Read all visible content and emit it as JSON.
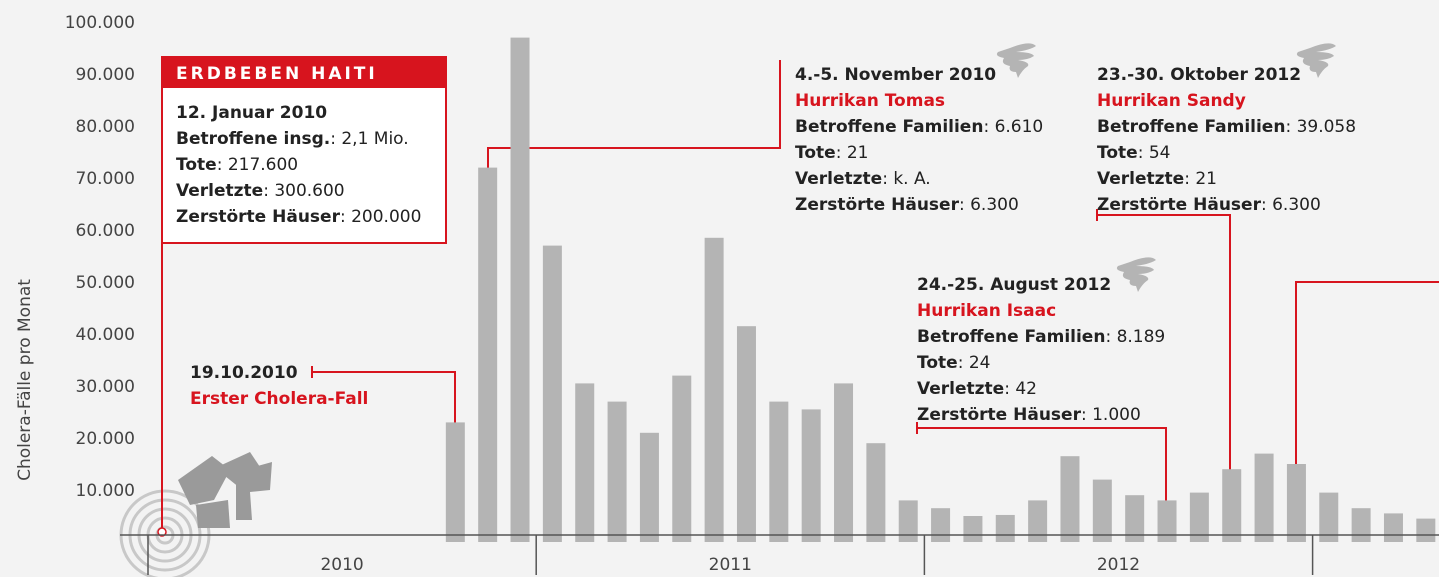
{
  "chart_data": {
    "type": "bar",
    "y_label": "Cholera-Fälle pro Monat",
    "categories": [
      null,
      null,
      null,
      null,
      null,
      null,
      null,
      null,
      null,
      null,
      null,
      null,
      null,
      null,
      null,
      null,
      null,
      null,
      null,
      null,
      null,
      null,
      null,
      null,
      null,
      null,
      null,
      null,
      null,
      null,
      null,
      null,
      null,
      null,
      null,
      null,
      null,
      null,
      null,
      null
    ],
    "values": [
      null,
      null,
      null,
      null,
      null,
      null,
      null,
      null,
      null,
      23000,
      72000,
      97000,
      57000,
      30500,
      27000,
      21000,
      32000,
      58500,
      41500,
      27000,
      25500,
      30500,
      19000,
      8000,
      6500,
      5000,
      5200,
      8000,
      16500,
      12000,
      9000,
      8000,
      9500,
      14000,
      17000,
      15000,
      9500,
      6500,
      5500,
      4500
    ],
    "color": "#b4b4b4",
    "years": [
      "2010",
      "2011",
      "2012"
    ],
    "ylim": [
      0,
      100000
    ],
    "yticks": [
      {
        "value": 10000,
        "label": "10.000"
      },
      {
        "value": 20000,
        "label": "20.000"
      },
      {
        "value": 30000,
        "label": "30.000"
      },
      {
        "value": 40000,
        "label": "40.000"
      },
      {
        "value": 50000,
        "label": "50.000"
      },
      {
        "value": 60000,
        "label": "60.000"
      },
      {
        "value": 70000,
        "label": "70.000"
      },
      {
        "value": 80000,
        "label": "80.000"
      },
      {
        "value": 90000,
        "label": "90.000"
      },
      {
        "value": 100000,
        "label": "100.000"
      }
    ],
    "annotations": [
      {
        "title": "ERDBEBEN HAITI",
        "lines": [
          {
            "bold": "12. Januar 2010"
          },
          {
            "bold": "Betroffene insg.",
            "text": ": 2,1 Mio."
          },
          {
            "bold": "Tote",
            "text": ": 217.600"
          },
          {
            "bold": "Verletzte",
            "text": ": 300.600"
          },
          {
            "bold": "Zerstörte Häuser",
            "text": ": 200.000"
          }
        ]
      },
      {
        "lines": [
          {
            "bold": "19.10.2010"
          },
          {
            "red": "Erster Cholera-Fall"
          }
        ]
      },
      {
        "lines": [
          {
            "bold": "4.-5. November 2010"
          },
          {
            "red": "Hurrikan Tomas"
          },
          {
            "bold": "Betroffene Familien",
            "text": ": 6.610"
          },
          {
            "bold": "Tote",
            "text": ": 21"
          },
          {
            "bold": "Verletzte",
            "text": ": k. A."
          },
          {
            "bold": "Zerstörte Häuser",
            "text": ": 6.300"
          }
        ]
      },
      {
        "lines": [
          {
            "bold": "24.-25. August 2012"
          },
          {
            "red": "Hurrikan Isaac"
          },
          {
            "bold": "Betroffene Familien",
            "text": ": 8.189"
          },
          {
            "bold": "Tote",
            "text": ": 24"
          },
          {
            "bold": "Verletzte",
            "text": ": 42"
          },
          {
            "bold": "Zerstörte Häuser",
            "text": ": 1.000"
          }
        ]
      },
      {
        "lines": [
          {
            "bold": "23.-30. Oktober 2012"
          },
          {
            "red": "Hurrikan Sandy"
          },
          {
            "bold": "Betroffene Familien",
            "text": ": 39.058"
          },
          {
            "bold": "Tote",
            "text": ": 54"
          },
          {
            "bold": "Verletzte",
            "text": ": 21"
          },
          {
            "bold": "Zerstörte Häuser",
            "text": ": 6.300"
          }
        ]
      }
    ]
  }
}
